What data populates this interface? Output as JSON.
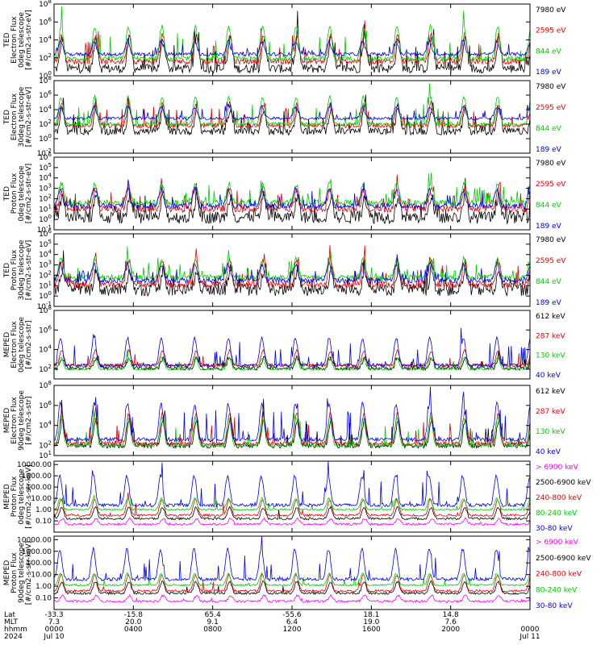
{
  "chart_data": [
    {
      "type": "line",
      "ylabel_lines": [
        "TED",
        "Electron Flux",
        "0deg telescope",
        "[#/cm2-s-str-eV]"
      ],
      "ylog": true,
      "ylim_exp": [
        0,
        8
      ],
      "ticks_exp": [
        0,
        2,
        4,
        6,
        8
      ],
      "series": [
        {
          "name": "7980 eV",
          "color": "#000000",
          "base_exp": 0.8,
          "amp": 3.4,
          "noise": 1.0,
          "spike_prob": 0.08
        },
        {
          "name": "2595 eV",
          "color": "#e00000",
          "base_exp": 1.6,
          "amp": 3.0,
          "noise": 0.6,
          "spike_prob": 0.06
        },
        {
          "name": "844 eV",
          "color": "#00cc00",
          "base_exp": 1.9,
          "amp": 3.6,
          "noise": 0.5,
          "spike_prob": 0.05
        },
        {
          "name": "189 eV",
          "color": "#0000e0",
          "base_exp": 2.4,
          "amp": 1.4,
          "noise": 0.4,
          "spike_prob": 0.04
        }
      ]
    },
    {
      "type": "line",
      "ylabel_lines": [
        "TED",
        "Electron Flux",
        "30deg telescope",
        "[#/cm2-s-str-eV]"
      ],
      "ylog": true,
      "ylim_exp": [
        -2,
        8
      ],
      "ticks_exp": [
        -2,
        0,
        2,
        4,
        6,
        8
      ],
      "series": [
        {
          "name": "7980 eV",
          "color": "#000000",
          "base_exp": 1.0,
          "amp": 3.2,
          "noise": 1.0,
          "spike_prob": 0.08
        },
        {
          "name": "2595 eV",
          "color": "#e00000",
          "base_exp": 1.8,
          "amp": 3.0,
          "noise": 0.6,
          "spike_prob": 0.06
        },
        {
          "name": "844 eV",
          "color": "#00cc00",
          "base_exp": 2.0,
          "amp": 3.8,
          "noise": 0.5,
          "spike_prob": 0.05
        },
        {
          "name": "189 eV",
          "color": "#0000e0",
          "base_exp": 2.8,
          "amp": 1.6,
          "noise": 0.4,
          "spike_prob": 0.04
        }
      ]
    },
    {
      "type": "line",
      "ylabel_lines": [
        "TED",
        "Proton Flux",
        "0deg telescope",
        "[#/cm2-s-str-eV]"
      ],
      "ylog": true,
      "ylim_exp": [
        -1,
        6
      ],
      "ticks_exp": [
        -1,
        0,
        1,
        2,
        3,
        4,
        5,
        6
      ],
      "series": [
        {
          "name": "7980 eV",
          "color": "#000000",
          "base_exp": 0.2,
          "amp": 2.0,
          "noise": 1.2,
          "spike_prob": 0.1
        },
        {
          "name": "2595 eV",
          "color": "#e00000",
          "base_exp": 1.0,
          "amp": 2.0,
          "noise": 0.6,
          "spike_prob": 0.08
        },
        {
          "name": "844 eV",
          "color": "#00cc00",
          "base_exp": 1.6,
          "amp": 1.8,
          "noise": 0.6,
          "spike_prob": 0.08
        },
        {
          "name": "189 eV",
          "color": "#0000e0",
          "base_exp": 1.3,
          "amp": 1.6,
          "noise": 0.5,
          "spike_prob": 0.06
        }
      ]
    },
    {
      "type": "line",
      "ylabel_lines": [
        "TED",
        "Proton Flux",
        "30deg telescope",
        "[#/cm2-s-str-eV]"
      ],
      "ylog": true,
      "ylim_exp": [
        -1,
        6
      ],
      "ticks_exp": [
        -1,
        0,
        1,
        2,
        3,
        4,
        5,
        6
      ],
      "series": [
        {
          "name": "7980 eV",
          "color": "#000000",
          "base_exp": 0.6,
          "amp": 2.0,
          "noise": 1.2,
          "spike_prob": 0.1
        },
        {
          "name": "2595 eV",
          "color": "#e00000",
          "base_exp": 1.1,
          "amp": 2.4,
          "noise": 0.6,
          "spike_prob": 0.08
        },
        {
          "name": "844 eV",
          "color": "#00cc00",
          "base_exp": 1.8,
          "amp": 1.8,
          "noise": 0.5,
          "spike_prob": 0.08
        },
        {
          "name": "189 eV",
          "color": "#0000e0",
          "base_exp": 1.5,
          "amp": 1.6,
          "noise": 0.5,
          "spike_prob": 0.06
        }
      ]
    },
    {
      "type": "line",
      "ylabel_lines": [
        "MEPED",
        "Electron Flux",
        "0deg telescope",
        "[#/cm2-s-str]"
      ],
      "ylog": true,
      "ylim_exp": [
        1,
        8
      ],
      "ticks_exp": [
        2,
        4,
        6,
        8
      ],
      "series": [
        {
          "name": "612 keV",
          "color": "#000000",
          "base_exp": 2.1,
          "amp": 1.0,
          "noise": 0.4,
          "spike_prob": 0.03
        },
        {
          "name": "287 keV",
          "color": "#e00000",
          "base_exp": 2.4,
          "amp": 1.5,
          "noise": 0.3,
          "spike_prob": 0.03
        },
        {
          "name": "130 keV",
          "color": "#00cc00",
          "base_exp": 2.0,
          "amp": 1.2,
          "noise": 0.2,
          "spike_prob": 0.02
        },
        {
          "name": "40 keV",
          "color": "#0000e0",
          "base_exp": 2.4,
          "amp": 2.8,
          "noise": 0.3,
          "spike_prob": 0.06
        }
      ]
    },
    {
      "type": "line",
      "ylabel_lines": [
        "MEPED",
        "Electron Flux",
        "90deg telescope",
        "[#/cm2-s-str]"
      ],
      "ylog": true,
      "ylim_exp": [
        1,
        8
      ],
      "ticks_exp": [
        1,
        2,
        4,
        6,
        8
      ],
      "series": [
        {
          "name": "612 keV",
          "color": "#000000",
          "base_exp": 2.0,
          "amp": 2.6,
          "noise": 0.5,
          "spike_prob": 0.05
        },
        {
          "name": "287 keV",
          "color": "#e00000",
          "base_exp": 2.2,
          "amp": 3.0,
          "noise": 0.4,
          "spike_prob": 0.05
        },
        {
          "name": "130 keV",
          "color": "#00cc00",
          "base_exp": 2.0,
          "amp": 2.8,
          "noise": 0.3,
          "spike_prob": 0.04
        },
        {
          "name": "40 keV",
          "color": "#0000e0",
          "base_exp": 2.6,
          "amp": 3.6,
          "noise": 0.4,
          "spike_prob": 0.06
        }
      ]
    },
    {
      "type": "line",
      "ylabel_lines": [
        "MEPED",
        "Proton Flux",
        "0deg telescope",
        "[#/cm2-s-str-keV]"
      ],
      "ylog": true,
      "ylim_exp": [
        -2,
        4.3
      ],
      "ticks_exp": [
        -1,
        0,
        1,
        2,
        3,
        4
      ],
      "tick_labels": [
        "0.10",
        "1.00",
        "10.00",
        "100.00",
        "1000.00",
        "10000.00"
      ],
      "series": [
        {
          "name": "> 6900 keV",
          "color": "#ff00ff",
          "base_exp": -1.3,
          "amp": 0.5,
          "noise": 0.2,
          "spike_prob": 0.01
        },
        {
          "name": "2500-6900 keV",
          "color": "#000000",
          "base_exp": -0.8,
          "amp": 1.0,
          "noise": 0.2,
          "spike_prob": 0.01
        },
        {
          "name": "240-800 keV",
          "color": "#e00000",
          "base_exp": -0.5,
          "amp": 1.4,
          "noise": 0.2,
          "spike_prob": 0.02
        },
        {
          "name": "80-240 keV",
          "color": "#00cc00",
          "base_exp": 0.0,
          "amp": 1.0,
          "noise": 0.15,
          "spike_prob": 0.02
        },
        {
          "name": "30-80 keV",
          "color": "#0000e0",
          "base_exp": 0.4,
          "amp": 2.6,
          "noise": 0.3,
          "spike_prob": 0.05
        }
      ]
    },
    {
      "type": "line",
      "ylabel_lines": [
        "MEPED",
        "Proton Flux",
        "90deg telescope",
        "[#/cm2-s-str-keV]"
      ],
      "ylog": true,
      "ylim_exp": [
        -2,
        4.3
      ],
      "ticks_exp": [
        -1,
        0,
        1,
        2,
        3,
        4
      ],
      "tick_labels": [
        "0.10",
        "1.00",
        "10.00",
        "100.00",
        "1000.00",
        "10000.00"
      ],
      "series": [
        {
          "name": "> 6900 keV",
          "color": "#ff00ff",
          "base_exp": -1.3,
          "amp": 0.5,
          "noise": 0.2,
          "spike_prob": 0.01
        },
        {
          "name": "2500-6900 keV",
          "color": "#000000",
          "base_exp": -0.6,
          "amp": 1.0,
          "noise": 0.2,
          "spike_prob": 0.01
        },
        {
          "name": "240-800 keV",
          "color": "#e00000",
          "base_exp": -0.4,
          "amp": 1.4,
          "noise": 0.2,
          "spike_prob": 0.02
        },
        {
          "name": "80-240 keV",
          "color": "#00cc00",
          "base_exp": 0.1,
          "amp": 1.0,
          "noise": 0.15,
          "spike_prob": 0.02
        },
        {
          "name": "30-80 keV",
          "color": "#0000e0",
          "base_exp": 0.6,
          "amp": 2.6,
          "noise": 0.3,
          "spike_prob": 0.05
        }
      ]
    }
  ],
  "x_axis": {
    "row_labels": [
      "Lat",
      "MLT",
      "hhmm",
      "2024"
    ],
    "ticks": [
      {
        "lat": "-33.3",
        "mlt": "7.3",
        "hhmm": "0000",
        "date": "Jul 10"
      },
      {
        "lat": "-15.8",
        "mlt": "20.0",
        "hhmm": "0400",
        "date": ""
      },
      {
        "lat": "65.4",
        "mlt": "9.1",
        "hhmm": "0800",
        "date": ""
      },
      {
        "lat": "-55.6",
        "mlt": "6.4",
        "hhmm": "1200",
        "date": ""
      },
      {
        "lat": "18.1",
        "mlt": "19.0",
        "hhmm": "1600",
        "date": ""
      },
      {
        "lat": "14.8",
        "mlt": "7.6",
        "hhmm": "2000",
        "date": ""
      },
      {
        "lat": "",
        "mlt": "",
        "hhmm": "0000",
        "date": "Jul 11"
      }
    ]
  }
}
